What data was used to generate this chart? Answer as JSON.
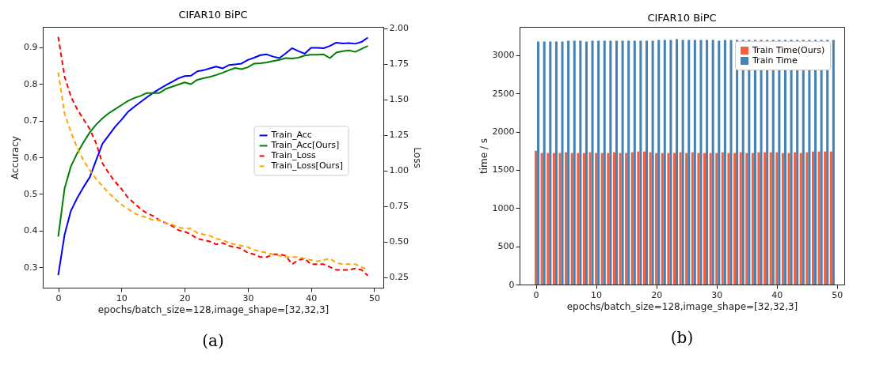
{
  "chart_data": [
    {
      "type": "line",
      "title": "CIFAR10 BiPC",
      "xlabel": "epochs/batch_size=128,image_shape=[32,32,3]",
      "ylabel": "Accuracy",
      "y2label": "Loss",
      "annotations": [
        "(a)"
      ],
      "legend": "right",
      "grid": false,
      "x": [
        0,
        1,
        2,
        3,
        4,
        5,
        6,
        7,
        8,
        9,
        10,
        11,
        12,
        13,
        14,
        15,
        16,
        17,
        18,
        19,
        20,
        21,
        22,
        23,
        24,
        25,
        26,
        27,
        28,
        29,
        30,
        31,
        32,
        33,
        34,
        35,
        36,
        37,
        38,
        39,
        40,
        41,
        42,
        43,
        44,
        45,
        46,
        47,
        48,
        49
      ],
      "xlim": [
        -2.45,
        51.45
      ],
      "xticks": [
        0,
        10,
        20,
        30,
        40,
        50
      ],
      "ylim": [
        0.245,
        0.955
      ],
      "yticks": [
        0.3,
        0.4,
        0.5,
        0.6,
        0.7,
        0.8,
        0.9
      ],
      "y2lim": [
        0.175,
        2.01
      ],
      "y2ticks": [
        0.25,
        {
          "value": 0.5,
          "label": "0.50"
        },
        0.75,
        {
          "value": 1.0,
          "label": "1.00"
        },
        1.25,
        {
          "value": 1.5,
          "label": "1.50"
        },
        1.75,
        {
          "value": 2.0,
          "label": "2.00"
        }
      ],
      "series": [
        {
          "name": "Train_Acc",
          "color": "#0000ff",
          "line_style": "solid",
          "values": [
            0.279,
            0.389,
            0.454,
            0.489,
            0.519,
            0.546,
            0.592,
            0.637,
            0.66,
            0.683,
            0.702,
            0.723,
            0.737,
            0.75,
            0.763,
            0.775,
            0.786,
            0.796,
            0.805,
            0.815,
            0.821,
            0.822,
            0.834,
            0.837,
            0.842,
            0.847,
            0.842,
            0.851,
            0.853,
            0.855,
            0.865,
            0.871,
            0.878,
            0.88,
            0.874,
            0.87,
            0.883,
            0.897,
            0.889,
            0.882,
            0.898,
            0.898,
            0.897,
            0.903,
            0.912,
            0.91,
            0.911,
            0.909,
            0.914,
            0.926
          ]
        },
        {
          "name": "Train_Acc[Ours]",
          "color": "#008000",
          "line_style": "solid",
          "values": [
            0.384,
            0.515,
            0.575,
            0.611,
            0.641,
            0.668,
            0.689,
            0.706,
            0.72,
            0.731,
            0.742,
            0.753,
            0.761,
            0.767,
            0.775,
            0.775,
            0.775,
            0.786,
            0.792,
            0.798,
            0.804,
            0.799,
            0.811,
            0.815,
            0.819,
            0.824,
            0.83,
            0.837,
            0.843,
            0.84,
            0.845,
            0.855,
            0.856,
            0.858,
            0.862,
            0.865,
            0.87,
            0.869,
            0.871,
            0.877,
            0.879,
            0.879,
            0.88,
            0.87,
            0.885,
            0.889,
            0.891,
            0.887,
            0.895,
            0.903
          ]
        },
        {
          "name": "Train_Loss",
          "color": "#ff0000",
          "line_style": "dashed",
          "axis": "y2",
          "values": [
            1.94,
            1.66,
            1.52,
            1.43,
            1.36,
            1.29,
            1.19,
            1.05,
            0.98,
            0.92,
            0.87,
            0.81,
            0.77,
            0.73,
            0.7,
            0.68,
            0.65,
            0.63,
            0.61,
            0.58,
            0.57,
            0.55,
            0.52,
            0.51,
            0.5,
            0.48,
            0.49,
            0.47,
            0.46,
            0.45,
            0.42,
            0.41,
            0.39,
            0.39,
            0.41,
            0.41,
            0.4,
            0.34,
            0.37,
            0.38,
            0.34,
            0.34,
            0.34,
            0.32,
            0.3,
            0.3,
            0.3,
            0.31,
            0.3,
            0.26
          ]
        },
        {
          "name": "Train_Loss[Ours]",
          "color": "#ffa500",
          "line_style": "dashed",
          "axis": "y2",
          "values": [
            1.69,
            1.4,
            1.27,
            1.16,
            1.07,
            1.0,
            0.94,
            0.89,
            0.84,
            0.8,
            0.76,
            0.73,
            0.7,
            0.68,
            0.67,
            0.65,
            0.65,
            0.63,
            0.62,
            0.6,
            0.59,
            0.59,
            0.56,
            0.55,
            0.54,
            0.52,
            0.51,
            0.49,
            0.48,
            0.47,
            0.46,
            0.44,
            0.43,
            0.42,
            0.41,
            0.4,
            0.39,
            0.39,
            0.39,
            0.38,
            0.37,
            0.36,
            0.37,
            0.38,
            0.35,
            0.34,
            0.34,
            0.34,
            0.32,
            0.3
          ]
        }
      ]
    },
    {
      "type": "bar",
      "title": "CIFAR10 BiPC",
      "xlabel": "epochs/batch_size=128,image_shape=[32,32,3]",
      "ylabel": "time / s",
      "annotations": [
        "(b)"
      ],
      "legend": "top right",
      "grid": false,
      "x": [
        0,
        1,
        2,
        3,
        4,
        5,
        6,
        7,
        8,
        9,
        10,
        11,
        12,
        13,
        14,
        15,
        16,
        17,
        18,
        19,
        20,
        21,
        22,
        23,
        24,
        25,
        26,
        27,
        28,
        29,
        30,
        31,
        32,
        33,
        34,
        35,
        36,
        37,
        38,
        39,
        40,
        41,
        42,
        43,
        44,
        45,
        46,
        47,
        48,
        49
      ],
      "xlim": [
        -2.7,
        51.2
      ],
      "xticks": [
        0,
        10,
        20,
        30,
        40,
        50
      ],
      "ylim": [
        0,
        3370
      ],
      "yticks": [
        0,
        500,
        1000,
        1500,
        2000,
        2500,
        3000
      ],
      "series": [
        {
          "name": "Train Time(Ours)",
          "color": "#f4603e",
          "values": [
            1750,
            1720,
            1720,
            1720,
            1720,
            1730,
            1720,
            1720,
            1720,
            1730,
            1720,
            1720,
            1720,
            1730,
            1720,
            1720,
            1730,
            1740,
            1740,
            1730,
            1720,
            1720,
            1720,
            1720,
            1730,
            1720,
            1730,
            1720,
            1720,
            1720,
            1720,
            1730,
            1720,
            1720,
            1730,
            1720,
            1720,
            1730,
            1730,
            1730,
            1730,
            1720,
            1720,
            1730,
            1720,
            1730,
            1740,
            1740,
            1740,
            1740
          ]
        },
        {
          "name": "Train Time",
          "color": "#4682b4",
          "values": [
            3180,
            3180,
            3180,
            3180,
            3180,
            3190,
            3190,
            3190,
            3180,
            3190,
            3190,
            3190,
            3190,
            3190,
            3190,
            3190,
            3190,
            3190,
            3190,
            3190,
            3200,
            3200,
            3200,
            3210,
            3200,
            3200,
            3200,
            3200,
            3200,
            3200,
            3190,
            3200,
            3200,
            3200,
            3200,
            3200,
            3200,
            3200,
            3200,
            3200,
            3200,
            3200,
            3200,
            3200,
            3200,
            3200,
            3200,
            3200,
            3200,
            3200
          ]
        }
      ]
    }
  ]
}
